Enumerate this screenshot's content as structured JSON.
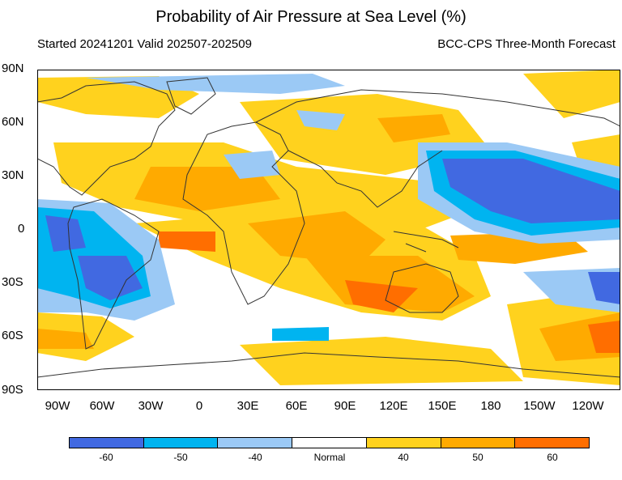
{
  "header": {
    "title": "Probability of Air Pressure at Sea Level (%)",
    "started": "Started 20241201  Valid 202507-202509",
    "model": "BCC-CPS Three-Month Forecast"
  },
  "axes": {
    "lat_labels": [
      "90N",
      "60N",
      "30N",
      "0",
      "30S",
      "60S",
      "90S"
    ],
    "lon_labels": [
      "90W",
      "60W",
      "30W",
      "0",
      "30E",
      "60E",
      "90E",
      "120E",
      "150E",
      "180",
      "150W",
      "120W"
    ]
  },
  "legend": {
    "labels": [
      "-60",
      "-50",
      "-40",
      "Normal",
      "40",
      "50",
      "60"
    ],
    "colors": [
      "#4169e1",
      "#00b4f0",
      "#9bc9f5",
      "#ffffff",
      "#ffd21e",
      "#ffaa00",
      "#ff6e00"
    ]
  },
  "colors": {
    "land_outline": "#333333",
    "frame": "#000000"
  }
}
